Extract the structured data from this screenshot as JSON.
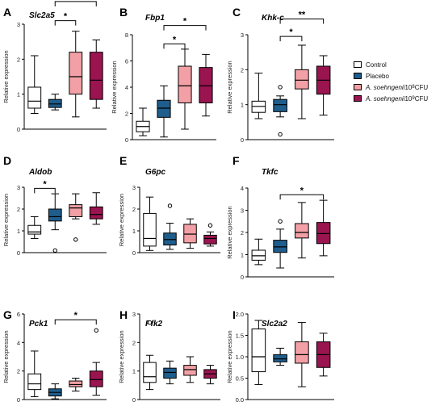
{
  "figure": {
    "legend": [
      {
        "label": "Control",
        "color": "#ffffff"
      },
      {
        "label": "Placebo",
        "color": "#1f5d8c"
      },
      {
        "label_italic": "A. soehngenii",
        "label_rest": " 10",
        "sup": "8",
        "suffix": " CFU",
        "color": "#f2a0a5"
      },
      {
        "label_italic": "A. soehngenii",
        "label_rest": " 10",
        "sup": "9",
        "suffix": " CFU",
        "color": "#9a1450"
      }
    ]
  },
  "chart_data": [
    {
      "type": "box",
      "letter": "A",
      "title": "Slc2a5",
      "ylabel": "Relative expression",
      "ylim": [
        0,
        3
      ],
      "yticks": [
        "0",
        "1",
        "2",
        "3"
      ],
      "groups": [
        {
          "name": "Control",
          "min": 0.45,
          "q1": 0.6,
          "median": 0.8,
          "q3": 1.2,
          "max": 2.1,
          "outliers": []
        },
        {
          "name": "Placebo",
          "min": 0.55,
          "q1": 0.62,
          "median": 0.72,
          "q3": 0.85,
          "max": 1.0,
          "outliers": []
        },
        {
          "name": "A. soehngenii 10^8 CFU",
          "min": 0.35,
          "q1": 1.0,
          "median": 1.5,
          "q3": 2.2,
          "max": 2.8,
          "outliers": []
        },
        {
          "name": "A. soehngenii 10^9 CFU",
          "min": 0.6,
          "q1": 0.85,
          "median": 1.4,
          "q3": 2.2,
          "max": 2.55,
          "outliers": []
        }
      ],
      "sig": [
        {
          "from": 1,
          "to": 2,
          "y": 3.1,
          "label": "*"
        },
        {
          "from": 1,
          "to": 3,
          "y": 3.65,
          "label": "*"
        }
      ]
    },
    {
      "type": "box",
      "letter": "B",
      "title": "Fbp1",
      "ylabel": "Relative expression",
      "ylim": [
        0,
        8
      ],
      "yticks": [
        "0",
        "2",
        "4",
        "6",
        "8"
      ],
      "groups": [
        {
          "name": "Control",
          "min": 0.3,
          "q1": 0.6,
          "median": 1.0,
          "q3": 1.4,
          "max": 2.4,
          "outliers": []
        },
        {
          "name": "Placebo",
          "min": 0.2,
          "q1": 1.7,
          "median": 2.4,
          "q3": 3.0,
          "max": 4.1,
          "outliers": []
        },
        {
          "name": "A. soehngenii 10^8 CFU",
          "min": 0.8,
          "q1": 2.8,
          "median": 4.1,
          "q3": 5.6,
          "max": 6.9,
          "outliers": []
        },
        {
          "name": "A. soehngenii 10^9 CFU",
          "min": 1.8,
          "q1": 2.8,
          "median": 4.1,
          "q3": 5.5,
          "max": 6.5,
          "outliers": []
        }
      ],
      "sig": [
        {
          "from": 1,
          "to": 2,
          "y": 7.3,
          "label": "*"
        },
        {
          "from": 1,
          "to": 3,
          "y": 8.7,
          "label": "*"
        }
      ]
    },
    {
      "type": "box",
      "letter": "C",
      "title": "Khk-c",
      "ylabel": "Relative expression",
      "ylim": [
        0,
        3
      ],
      "yticks": [
        "0",
        "1",
        "2",
        "3"
      ],
      "groups": [
        {
          "name": "Control",
          "min": 0.6,
          "q1": 0.78,
          "median": 0.95,
          "q3": 1.1,
          "max": 1.9,
          "outliers": []
        },
        {
          "name": "Placebo",
          "min": 0.65,
          "q1": 0.8,
          "median": 1.0,
          "q3": 1.15,
          "max": 1.25,
          "outliers": [
            1.5,
            0.15
          ]
        },
        {
          "name": "A. soehngenii 10^8 CFU",
          "min": 0.6,
          "q1": 1.45,
          "median": 1.7,
          "q3": 2.0,
          "max": 2.7,
          "outliers": []
        },
        {
          "name": "A. soehngenii 10^9 CFU",
          "min": 0.7,
          "q1": 1.3,
          "median": 1.7,
          "q3": 2.1,
          "max": 2.4,
          "outliers": []
        }
      ],
      "sig": [
        {
          "from": 1,
          "to": 2,
          "y": 2.95,
          "label": "*"
        },
        {
          "from": 1,
          "to": 3,
          "y": 3.45,
          "label": "**"
        }
      ]
    },
    {
      "type": "box",
      "letter": "D",
      "title": "Aldob",
      "ylabel": "Relative expression",
      "ylim": [
        0,
        3
      ],
      "yticks": [
        "0",
        "1",
        "2",
        "3"
      ],
      "groups": [
        {
          "name": "Control",
          "min": 0.65,
          "q1": 0.85,
          "median": 0.95,
          "q3": 1.25,
          "max": 1.65,
          "outliers": []
        },
        {
          "name": "Placebo",
          "min": 1.05,
          "q1": 1.45,
          "median": 1.65,
          "q3": 2.0,
          "max": 2.7,
          "outliers": [
            0.1
          ]
        },
        {
          "name": "A. soehngenii 10^8 CFU",
          "min": 1.55,
          "q1": 1.65,
          "median": 2.05,
          "q3": 2.2,
          "max": 2.7,
          "outliers": [
            0.6
          ]
        },
        {
          "name": "A. soehngenii 10^9 CFU",
          "min": 1.3,
          "q1": 1.55,
          "median": 1.75,
          "q3": 2.1,
          "max": 2.75,
          "outliers": []
        }
      ],
      "sig": [
        {
          "from": 0,
          "to": 1,
          "y": 2.95,
          "label": "*"
        }
      ]
    },
    {
      "type": "box",
      "letter": "E",
      "title": "G6pc",
      "ylabel": "Relative expression",
      "ylim": [
        0,
        3
      ],
      "yticks": [
        "0",
        "1",
        "2",
        "3"
      ],
      "groups": [
        {
          "name": "Control",
          "min": 0.1,
          "q1": 0.3,
          "median": 0.65,
          "q3": 1.8,
          "max": 2.55,
          "outliers": []
        },
        {
          "name": "Placebo",
          "min": 0.15,
          "q1": 0.35,
          "median": 0.6,
          "q3": 0.9,
          "max": 1.35,
          "outliers": [
            2.15
          ]
        },
        {
          "name": "A. soehngenii 10^8 CFU",
          "min": 0.2,
          "q1": 0.45,
          "median": 0.85,
          "q3": 1.3,
          "max": 1.55,
          "outliers": []
        },
        {
          "name": "A. soehngenii 10^9 CFU",
          "min": 0.3,
          "q1": 0.4,
          "median": 0.65,
          "q3": 0.8,
          "max": 0.95,
          "outliers": [
            1.25
          ]
        }
      ],
      "sig": []
    },
    {
      "type": "box",
      "letter": "F",
      "title": "Tkfc",
      "ylabel": "Relative expression",
      "ylim": [
        0,
        4
      ],
      "yticks": [
        "0",
        "1",
        "2",
        "3",
        "4"
      ],
      "groups": [
        {
          "name": "Control",
          "min": 0.55,
          "q1": 0.75,
          "median": 0.95,
          "q3": 1.2,
          "max": 1.7,
          "outliers": []
        },
        {
          "name": "Placebo",
          "min": 0.4,
          "q1": 1.1,
          "median": 1.35,
          "q3": 1.65,
          "max": 2.15,
          "outliers": [
            2.5
          ]
        },
        {
          "name": "A. soehngenii 10^8 CFU",
          "min": 0.85,
          "q1": 1.75,
          "median": 2.0,
          "q3": 2.4,
          "max": 3.35,
          "outliers": []
        },
        {
          "name": "A. soehngenii 10^9 CFU",
          "min": 0.95,
          "q1": 1.5,
          "median": 1.95,
          "q3": 2.45,
          "max": 3.45,
          "outliers": []
        }
      ],
      "sig": [
        {
          "from": 1,
          "to": 3,
          "y": 3.7,
          "label": "*"
        }
      ]
    },
    {
      "type": "box",
      "letter": "G",
      "title": "Pck1",
      "ylabel": "Relative expression",
      "ylim": [
        0,
        6
      ],
      "yticks": [
        "0",
        "2",
        "4",
        "6"
      ],
      "groups": [
        {
          "name": "Control",
          "min": 0.2,
          "q1": 0.7,
          "median": 1.1,
          "q3": 1.8,
          "max": 3.4,
          "outliers": []
        },
        {
          "name": "Placebo",
          "min": 0.05,
          "q1": 0.25,
          "median": 0.5,
          "q3": 0.75,
          "max": 1.1,
          "outliers": []
        },
        {
          "name": "A. soehngenii 10^8 CFU",
          "min": 0.6,
          "q1": 0.9,
          "median": 1.05,
          "q3": 1.3,
          "max": 1.5,
          "outliers": []
        },
        {
          "name": "A. soehngenii 10^9 CFU",
          "min": 0.3,
          "q1": 0.9,
          "median": 1.4,
          "q3": 2.0,
          "max": 2.6,
          "outliers": [
            4.85
          ]
        }
      ],
      "sig": [
        {
          "from": 1,
          "to": 3,
          "y": 5.6,
          "label": "*"
        }
      ]
    },
    {
      "type": "box",
      "letter": "H",
      "title": "Pfk2",
      "ylabel": "Relative expression",
      "ylim": [
        0,
        3
      ],
      "yticks": [
        "0",
        "1",
        "2",
        "3"
      ],
      "groups": [
        {
          "name": "Control",
          "min": 0.35,
          "q1": 0.6,
          "median": 0.8,
          "q3": 1.3,
          "max": 1.55,
          "outliers": [
            2.7
          ]
        },
        {
          "name": "Placebo",
          "min": 0.55,
          "q1": 0.75,
          "median": 0.95,
          "q3": 1.1,
          "max": 1.35,
          "outliers": []
        },
        {
          "name": "A. soehngenii 10^8 CFU",
          "min": 0.6,
          "q1": 0.85,
          "median": 1.05,
          "q3": 1.2,
          "max": 1.5,
          "outliers": []
        },
        {
          "name": "A. soehngenii 10^9 CFU",
          "min": 0.55,
          "q1": 0.75,
          "median": 0.9,
          "q3": 1.05,
          "max": 1.2,
          "outliers": []
        }
      ],
      "sig": []
    },
    {
      "type": "box",
      "letter": "I",
      "title": "Slc2a2",
      "ylabel": "Relative expression",
      "ylim": [
        0,
        2
      ],
      "yticks": [
        "0.0",
        "0.5",
        "1.0",
        "1.5",
        "2.0"
      ],
      "groups": [
        {
          "name": "Control",
          "min": 0.35,
          "q1": 0.65,
          "median": 1.0,
          "q3": 1.65,
          "max": 1.85,
          "outliers": []
        },
        {
          "name": "Placebo",
          "min": 0.8,
          "q1": 0.88,
          "median": 0.95,
          "q3": 1.05,
          "max": 1.2,
          "outliers": []
        },
        {
          "name": "A. soehngenii 10^8 CFU",
          "min": 0.3,
          "q1": 0.85,
          "median": 1.05,
          "q3": 1.35,
          "max": 1.8,
          "outliers": []
        },
        {
          "name": "A. soehngenii 10^9 CFU",
          "min": 0.55,
          "q1": 0.75,
          "median": 1.05,
          "q3": 1.35,
          "max": 1.55,
          "outliers": []
        }
      ],
      "sig": []
    }
  ]
}
